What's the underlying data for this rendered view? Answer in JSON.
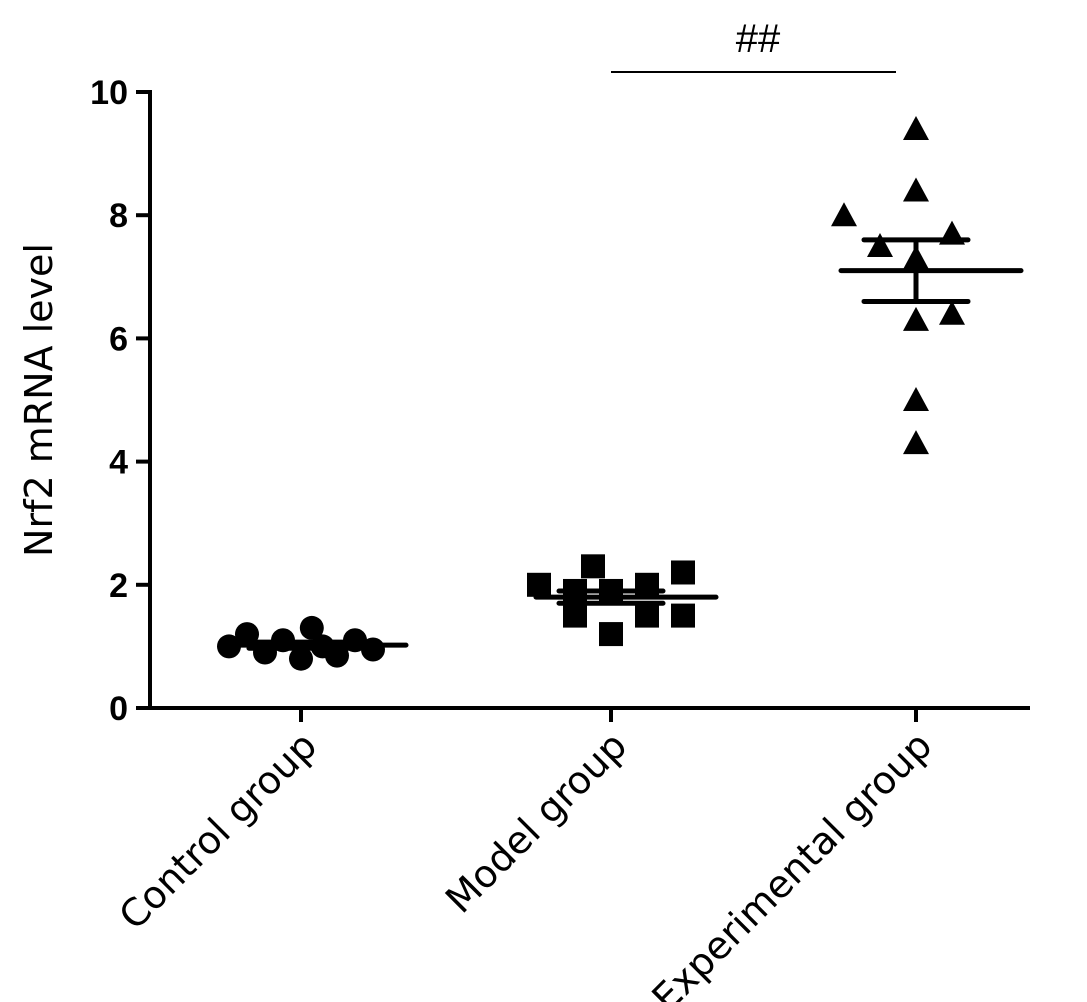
{
  "chart_data": {
    "type": "scatter",
    "title": "",
    "xlabel": "",
    "ylabel": "Nrf2 mRNA level",
    "ylim": [
      0,
      10
    ],
    "yticks": [
      "0",
      "2",
      "4",
      "6",
      "8",
      "10"
    ],
    "categories": [
      "Control group",
      "Model group",
      "Experimental group"
    ],
    "series": [
      {
        "name": "Control group",
        "marker": "circle",
        "values": [
          1.0,
          1.2,
          0.9,
          1.1,
          0.8,
          1.3,
          1.0,
          0.85,
          1.1,
          0.95
        ],
        "offsets": [
          -4,
          -3,
          -2,
          -1,
          0,
          0.6,
          1.2,
          2,
          3,
          4
        ],
        "mean": 1.02,
        "sem": 0.05
      },
      {
        "name": "Model group",
        "marker": "square",
        "values": [
          2.0,
          1.5,
          1.9,
          2.3,
          1.2,
          1.9,
          2.0,
          1.5,
          2.2,
          1.5
        ],
        "offsets": [
          -4,
          -2,
          -2,
          -1,
          0,
          0,
          2,
          2,
          4,
          4
        ],
        "mean": 1.8,
        "sem": 0.1
      },
      {
        "name": "Experimental group",
        "marker": "triangle",
        "values": [
          9.4,
          8.4,
          8.0,
          7.7,
          7.5,
          7.3,
          6.3,
          6.4,
          5.0,
          4.3
        ],
        "offsets": [
          0,
          0,
          -4,
          2,
          -2,
          0,
          0,
          2,
          0,
          0
        ],
        "mean": 7.1,
        "sem": 0.5
      }
    ],
    "annotations": [
      {
        "text": "##",
        "from": "Model group",
        "to": "Experimental group"
      }
    ],
    "grid": false,
    "legend": "none"
  }
}
